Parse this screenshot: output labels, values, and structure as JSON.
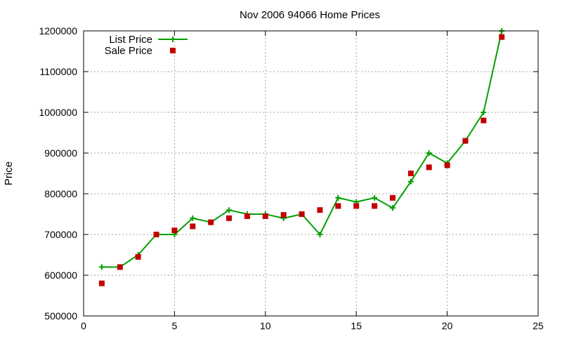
{
  "chart_data": {
    "type": "line",
    "title": "Nov 2006 94066 Home Prices",
    "xlabel": "",
    "ylabel": "Price",
    "xlim": [
      0,
      25
    ],
    "ylim": [
      500000,
      1200000
    ],
    "xticks": [
      0,
      5,
      10,
      15,
      20,
      25
    ],
    "yticks": [
      500000,
      600000,
      700000,
      800000,
      900000,
      1000000,
      1100000,
      1200000
    ],
    "grid": true,
    "legend_position": "top-left",
    "series": [
      {
        "name": "List Price",
        "style": "line-plus",
        "color": "#00a000",
        "x": [
          1,
          2,
          3,
          4,
          5,
          6,
          7,
          8,
          9,
          10,
          11,
          12,
          13,
          14,
          15,
          16,
          17,
          18,
          19,
          20,
          21,
          22,
          23
        ],
        "y": [
          620000,
          620000,
          650000,
          700000,
          700000,
          740000,
          730000,
          760000,
          750000,
          750000,
          740000,
          750000,
          700000,
          790000,
          780000,
          790000,
          765000,
          830000,
          900000,
          875000,
          930000,
          1000000,
          1200000
        ]
      },
      {
        "name": "Sale Price",
        "style": "square-markers",
        "color": "#c00000",
        "x": [
          1,
          2,
          3,
          4,
          5,
          6,
          7,
          8,
          9,
          10,
          11,
          12,
          13,
          14,
          15,
          16,
          17,
          18,
          19,
          20,
          21,
          22,
          23
        ],
        "y": [
          580000,
          620000,
          645000,
          700000,
          710000,
          720000,
          730000,
          740000,
          745000,
          745000,
          748000,
          750000,
          760000,
          770000,
          770000,
          770000,
          790000,
          850000,
          865000,
          870000,
          930000,
          980000,
          1185000
        ]
      }
    ]
  }
}
